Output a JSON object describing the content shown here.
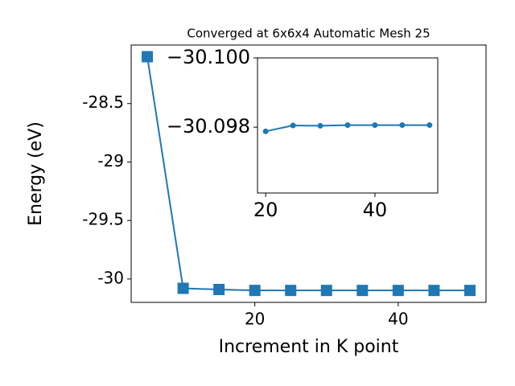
{
  "chart_data": [
    {
      "type": "line",
      "title": "Converged at 6x6x4 Automatic Mesh 25",
      "x_label": "Increment in K point",
      "y_label": "Energy (eV)",
      "x": [
        5,
        10,
        15,
        20,
        25,
        30,
        35,
        40,
        45,
        50
      ],
      "series": [
        {
          "color": "#1f77b4",
          "marker": "square",
          "values": [
            -28.1,
            -30.08,
            -30.09,
            -30.09788,
            -30.09805,
            -30.09804,
            -30.09806,
            -30.09806,
            -30.09806,
            -30.09806
          ]
        }
      ],
      "xlim": [
        2.75,
        52.25
      ],
      "xticks": [
        20,
        40
      ],
      "ylim": [
        -30.2,
        -28.0
      ],
      "yticks": [
        -30.0,
        -29.5,
        -29.0,
        -28.5
      ]
    },
    {
      "type": "line",
      "x": [
        20,
        25,
        30,
        35,
        40,
        45,
        50
      ],
      "series": [
        {
          "color": "#1f77b4",
          "marker": "circle",
          "values": [
            -30.09788,
            -30.09805,
            -30.09804,
            -30.09806,
            -30.09806,
            -30.09806,
            -30.09806
          ]
        }
      ],
      "xlim": [
        18.5,
        51.5
      ],
      "xticks": [
        20,
        40
      ],
      "ylim": [
        -30.0961,
        -30.1
      ],
      "yticks": [
        {
          "value": -30.1,
          "label": "−30.100"
        },
        {
          "value": -30.098,
          "label": "−30.098"
        }
      ]
    }
  ]
}
